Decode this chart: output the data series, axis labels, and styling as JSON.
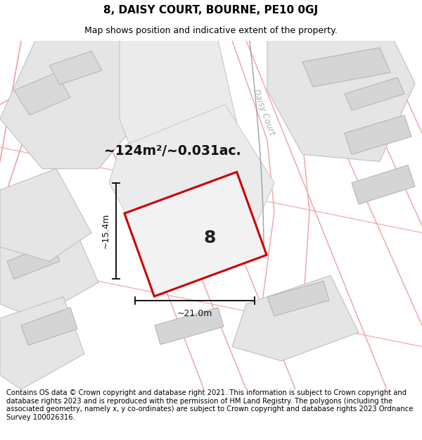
{
  "title": "8, DAISY COURT, BOURNE, PE10 0GJ",
  "subtitle": "Map shows position and indicative extent of the property.",
  "area_text": "~124m²/~0.031ac.",
  "plot_number": "8",
  "dim_width": "~21.0m",
  "dim_height": "~15.4m",
  "footer": "Contains OS data © Crown copyright and database right 2021. This information is subject to Crown copyright and database rights 2023 and is reproduced with the permission of HM Land Registry. The polygons (including the associated geometry, namely x, y co-ordinates) are subject to Crown copyright and database rights 2023 Ordnance Survey 100026316.",
  "bg_color": "#ffffff",
  "map_bg": "#ffffff",
  "parcel_fill": "#e8e8e8",
  "parcel_edge": "#c8c8c8",
  "road_outline_color": "#f0a0a0",
  "plot_fill": "#f0f0f0",
  "plot_edge": "#cc0000",
  "daisy_court_color": "#b0b0b0",
  "title_fontsize": 11,
  "subtitle_fontsize": 9,
  "footer_fontsize": 7.2
}
